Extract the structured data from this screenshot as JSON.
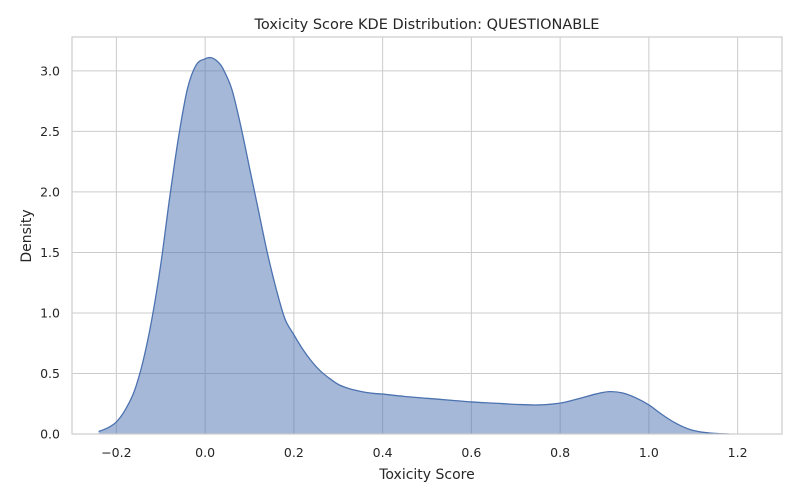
{
  "chart_data": {
    "type": "area",
    "title": "Toxicity Score KDE Distribution: QUESTIONABLE",
    "xlabel": "Toxicity Score",
    "ylabel": "Density",
    "xlim": [
      -0.3,
      1.3
    ],
    "ylim": [
      0,
      3.28
    ],
    "xticks": [
      -0.2,
      0.0,
      0.2,
      0.4,
      0.6,
      0.8,
      1.0,
      1.2
    ],
    "xtick_labels": [
      "−0.2",
      "0.0",
      "0.2",
      "0.4",
      "0.6",
      "0.8",
      "1.0",
      "1.2"
    ],
    "yticks": [
      0.0,
      0.5,
      1.0,
      1.5,
      2.0,
      2.5,
      3.0
    ],
    "ytick_labels": [
      "0.0",
      "0.5",
      "1.0",
      "1.5",
      "2.0",
      "2.5",
      "3.0"
    ],
    "grid": true,
    "fill_color": "#4c72b0",
    "fill_opacity": 0.5,
    "line_color": "#4c72b0",
    "x": [
      -0.24,
      -0.22,
      -0.2,
      -0.18,
      -0.16,
      -0.14,
      -0.12,
      -0.1,
      -0.08,
      -0.06,
      -0.04,
      -0.02,
      0.0,
      0.01,
      0.02,
      0.03,
      0.04,
      0.06,
      0.08,
      0.1,
      0.12,
      0.14,
      0.16,
      0.18,
      0.2,
      0.22,
      0.24,
      0.26,
      0.28,
      0.3,
      0.32,
      0.34,
      0.36,
      0.38,
      0.4,
      0.45,
      0.5,
      0.55,
      0.6,
      0.65,
      0.7,
      0.75,
      0.8,
      0.84,
      0.88,
      0.91,
      0.94,
      0.97,
      1.0,
      1.03,
      1.06,
      1.09,
      1.12,
      1.15,
      1.18
    ],
    "y": [
      0.02,
      0.05,
      0.1,
      0.2,
      0.35,
      0.6,
      0.95,
      1.4,
      1.95,
      2.45,
      2.85,
      3.05,
      3.1,
      3.11,
      3.1,
      3.07,
      3.02,
      2.85,
      2.55,
      2.2,
      1.85,
      1.5,
      1.2,
      0.95,
      0.82,
      0.7,
      0.6,
      0.52,
      0.46,
      0.41,
      0.38,
      0.36,
      0.345,
      0.335,
      0.33,
      0.31,
      0.295,
      0.28,
      0.265,
      0.255,
      0.245,
      0.24,
      0.255,
      0.29,
      0.33,
      0.35,
      0.34,
      0.3,
      0.24,
      0.16,
      0.09,
      0.04,
      0.015,
      0.005,
      0.0
    ]
  }
}
